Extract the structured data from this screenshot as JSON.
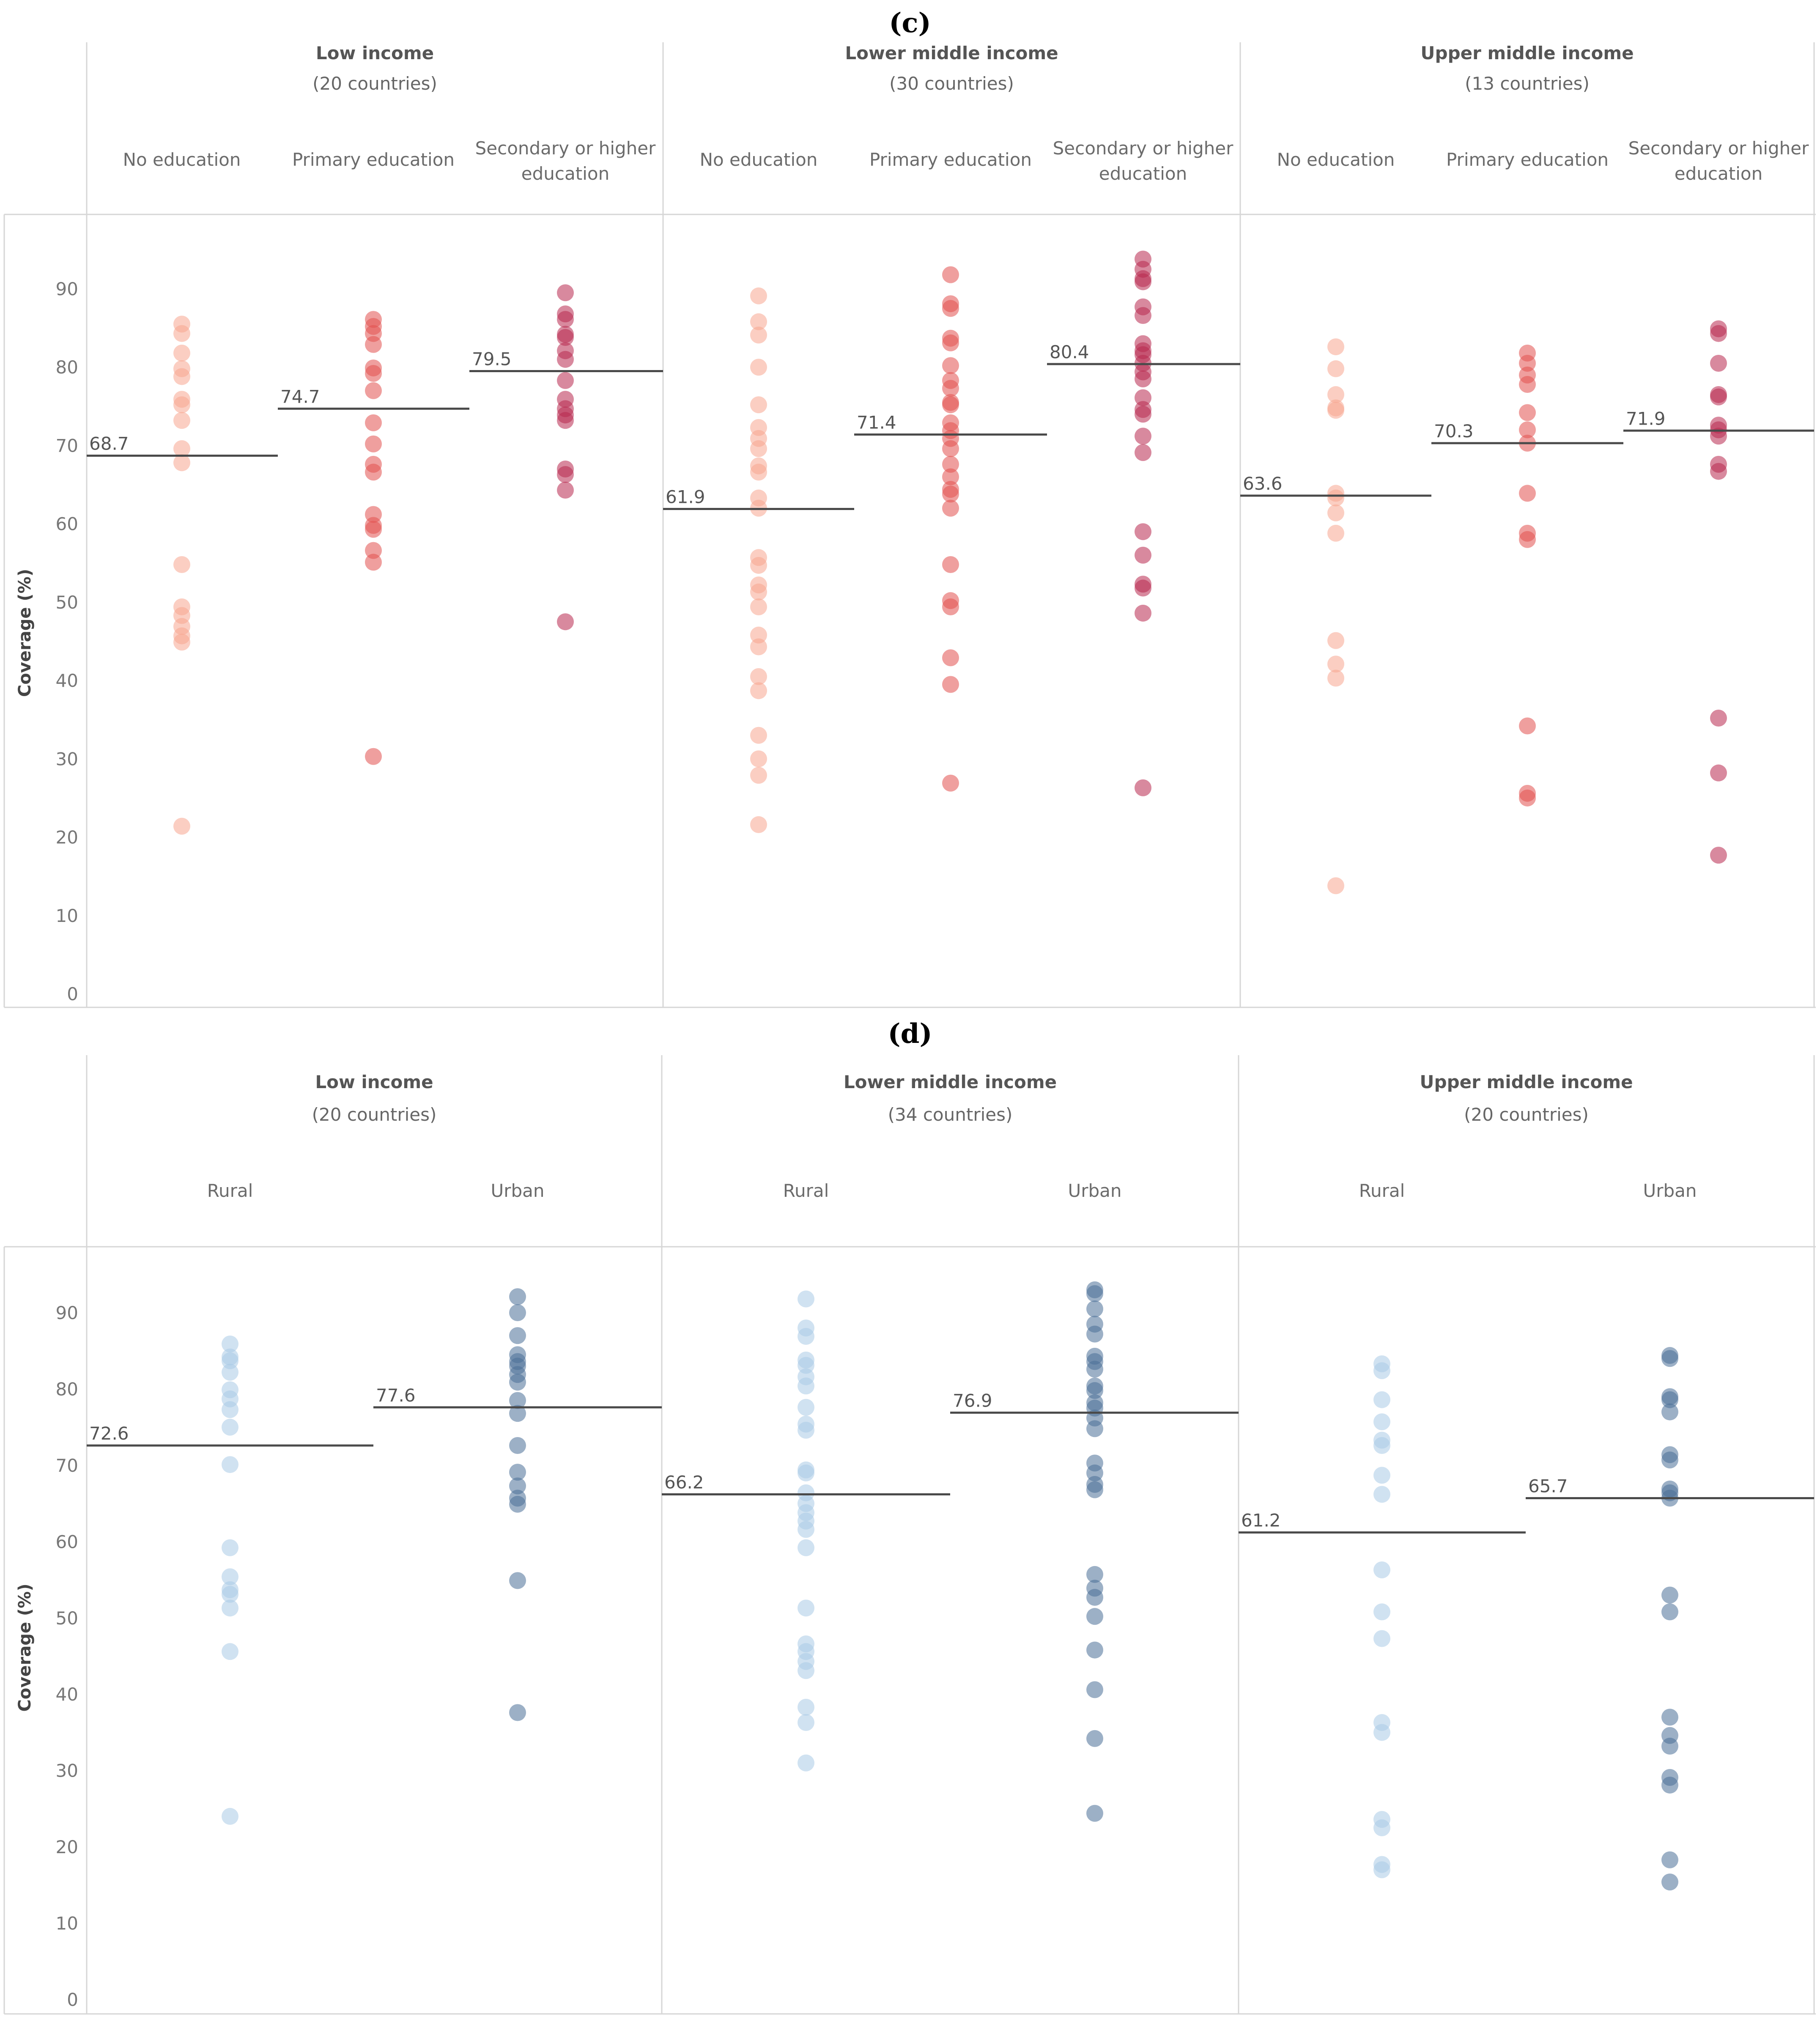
{
  "chart_data": [
    {
      "type": "scatter",
      "title": "(c)",
      "ylabel": "Coverage (%)",
      "ylim": [
        0,
        100
      ],
      "yticks": [
        0,
        10,
        20,
        30,
        40,
        50,
        60,
        70,
        80,
        90
      ],
      "colors": [
        "#f7a58f",
        "#e2514f",
        "#b8284f"
      ],
      "groups": [
        {
          "name": "Low income",
          "count_label": "(20 countries)",
          "categories": [
            {
              "label": [
                "No education"
              ],
              "median": 68.7,
              "values": [
                85.5,
                84.3,
                81.8,
                79.8,
                78.8,
                75.9,
                75.2,
                73.2,
                69.6,
                67.8,
                54.8,
                49.4,
                48.3,
                46.9,
                45.7,
                44.9,
                21.4
              ]
            },
            {
              "label": [
                "Primary education"
              ],
              "median": 74.7,
              "values": [
                86.1,
                85.2,
                84.3,
                82.9,
                79.9,
                79.2,
                77.0,
                72.9,
                70.2,
                67.6,
                66.6,
                61.2,
                59.8,
                59.3,
                56.6,
                55.1,
                30.3
              ]
            },
            {
              "label": [
                "Secondary or higher",
                "education"
              ],
              "median": 79.5,
              "values": [
                89.5,
                86.8,
                86.1,
                84.2,
                83.8,
                82.1,
                81.0,
                78.3,
                75.9,
                74.7,
                73.9,
                73.2,
                67.0,
                66.3,
                64.3,
                47.5
              ]
            }
          ]
        },
        {
          "name": "Lower middle income",
          "count_label": "(30 countries)",
          "categories": [
            {
              "label": [
                "No education"
              ],
              "median": 61.9,
              "values": [
                89.1,
                85.8,
                84.1,
                80.0,
                75.2,
                72.3,
                70.9,
                69.6,
                67.4,
                66.6,
                63.3,
                62.0,
                55.7,
                54.7,
                52.2,
                51.3,
                49.4,
                45.8,
                44.3,
                40.5,
                38.7,
                33.0,
                30.0,
                27.9,
                21.6
              ]
            },
            {
              "label": [
                "Primary education"
              ],
              "median": 71.4,
              "values": [
                91.8,
                88.1,
                87.5,
                83.7,
                83.1,
                80.2,
                78.3,
                77.3,
                75.5,
                75.2,
                72.9,
                71.9,
                70.9,
                69.6,
                67.6,
                66.0,
                64.4,
                63.8,
                62.0,
                54.8,
                50.2,
                49.4,
                42.9,
                39.5,
                26.9
              ]
            },
            {
              "label": [
                "Secondary or higher",
                "education"
              ],
              "median": 80.4,
              "values": [
                93.8,
                92.5,
                91.3,
                90.9,
                87.7,
                86.6,
                83.0,
                82.1,
                81.6,
                80.5,
                79.4,
                78.5,
                76.1,
                74.6,
                74.0,
                71.2,
                69.1,
                59.0,
                56.0,
                52.3,
                51.8,
                48.6,
                26.3
              ]
            }
          ]
        },
        {
          "name": "Upper middle income",
          "count_label": "(13 countries)",
          "categories": [
            {
              "label": [
                "No education"
              ],
              "median": 63.6,
              "values": [
                82.6,
                79.8,
                76.5,
                74.8,
                74.5,
                63.9,
                63.3,
                61.4,
                58.8,
                45.1,
                42.1,
                40.3,
                13.8
              ]
            },
            {
              "label": [
                "Primary education"
              ],
              "median": 70.3,
              "values": [
                81.8,
                80.5,
                79.0,
                77.8,
                74.2,
                72.0,
                70.3,
                63.9,
                58.8,
                58.0,
                34.2,
                25.6,
                25.0
              ]
            },
            {
              "label": [
                "Secondary or higher",
                "education"
              ],
              "median": 71.9,
              "values": [
                84.9,
                84.3,
                80.5,
                76.5,
                76.2,
                72.6,
                72.0,
                71.2,
                67.6,
                66.7,
                35.2,
                28.2,
                17.7
              ]
            }
          ]
        }
      ]
    },
    {
      "type": "scatter",
      "title": "(d)",
      "ylabel": "Coverage (%)",
      "ylim": [
        0,
        100
      ],
      "yticks": [
        0,
        10,
        20,
        30,
        40,
        50,
        60,
        70,
        80,
        90
      ],
      "colors": [
        "#a9cbe6",
        "#4a6f97"
      ],
      "groups": [
        {
          "name": "Low income",
          "count_label": "(20 countries)",
          "categories": [
            {
              "label": [
                "Rural"
              ],
              "median": 72.6,
              "values": [
                85.9,
                84.2,
                83.7,
                82.2,
                79.9,
                78.7,
                77.3,
                75.0,
                70.1,
                59.2,
                55.4,
                53.7,
                53.1,
                51.3,
                45.6,
                24.0
              ]
            },
            {
              "label": [
                "Urban"
              ],
              "median": 77.6,
              "values": [
                92.1,
                90.0,
                87.0,
                84.5,
                83.6,
                83.0,
                81.9,
                80.9,
                78.5,
                76.8,
                72.6,
                69.1,
                67.3,
                65.7,
                64.9,
                54.9,
                37.6
              ]
            }
          ]
        },
        {
          "name": "Lower middle income",
          "count_label": "(34 countries)",
          "categories": [
            {
              "label": [
                "Rural"
              ],
              "median": 66.2,
              "values": [
                91.8,
                88.0,
                86.9,
                83.8,
                83.1,
                81.6,
                80.4,
                77.6,
                75.4,
                74.6,
                69.4,
                69.0,
                66.4,
                65.0,
                63.8,
                62.7,
                61.6,
                59.2,
                51.3,
                46.6,
                45.6,
                44.3,
                43.1,
                38.3,
                36.3,
                31.0
              ]
            },
            {
              "label": [
                "Urban"
              ],
              "median": 76.9,
              "values": [
                93.0,
                92.5,
                90.5,
                88.5,
                87.2,
                84.3,
                83.6,
                82.6,
                80.4,
                79.8,
                78.2,
                77.5,
                76.2,
                74.8,
                70.3,
                69.0,
                67.5,
                66.8,
                55.7,
                53.9,
                52.7,
                50.2,
                45.8,
                40.6,
                34.2,
                24.4
              ]
            }
          ]
        },
        {
          "name": "Upper middle income",
          "count_label": "(20 countries)",
          "categories": [
            {
              "label": [
                "Rural"
              ],
              "median": 61.2,
              "values": [
                83.3,
                82.4,
                78.6,
                75.7,
                73.3,
                72.6,
                68.7,
                66.2,
                56.3,
                50.8,
                47.3,
                36.3,
                35.0,
                23.6,
                22.5,
                17.7,
                17.0
              ]
            },
            {
              "label": [
                "Urban"
              ],
              "median": 65.7,
              "values": [
                84.4,
                84.0,
                79.0,
                78.6,
                77.0,
                71.4,
                70.7,
                66.9,
                66.4,
                65.7,
                53.0,
                50.8,
                37.0,
                34.6,
                33.2,
                29.1,
                28.1,
                18.3,
                15.4
              ]
            }
          ]
        }
      ]
    }
  ]
}
